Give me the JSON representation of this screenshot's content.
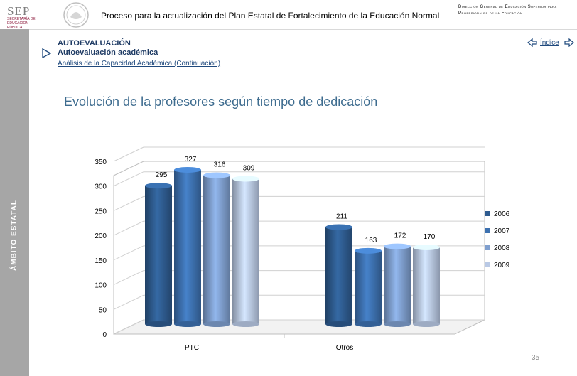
{
  "header": {
    "sep_logo_text": "SEP",
    "sep_logo_sub": "SECRETARÍA DE EDUCACIÓN PÚBLICA",
    "title": "Proceso para la actualización del Plan Estatal de Fortalecimiento de la Educación Normal",
    "dgesu": "Dirección General de Educación Superior para Profesionales de la Educación"
  },
  "sidebar": {
    "label": "ÁMBITO ESTATAL"
  },
  "section": {
    "title": "AUTOEVALUACIÓN",
    "subtitle": "Autoevaluación académica",
    "link": "Análisis de la Capacidad Académica (Continuación)"
  },
  "nav": {
    "indice": "Índice"
  },
  "chart_title": "Evolución de la profesores según tiempo de dedicación",
  "page_number": "35",
  "colors": {
    "series": [
      "#2e5b8f",
      "#3d71b0",
      "#7f9fce",
      "#b9c9e5"
    ],
    "title": "#3e6c8f",
    "sidebar": "#a6a6a6"
  },
  "chart_data": {
    "type": "bar",
    "categories": [
      "PTC",
      "Otros"
    ],
    "series": [
      {
        "name": "2006",
        "values": [
          295,
          211
        ]
      },
      {
        "name": "2007",
        "values": [
          327,
          163
        ]
      },
      {
        "name": "2008",
        "values": [
          316,
          172
        ]
      },
      {
        "name": "2009",
        "values": [
          309,
          170
        ]
      }
    ],
    "ylim": [
      0,
      350
    ],
    "yticks": [
      0,
      50,
      100,
      150,
      200,
      250,
      300,
      350
    ],
    "legend_position": "right",
    "three_d": true
  }
}
